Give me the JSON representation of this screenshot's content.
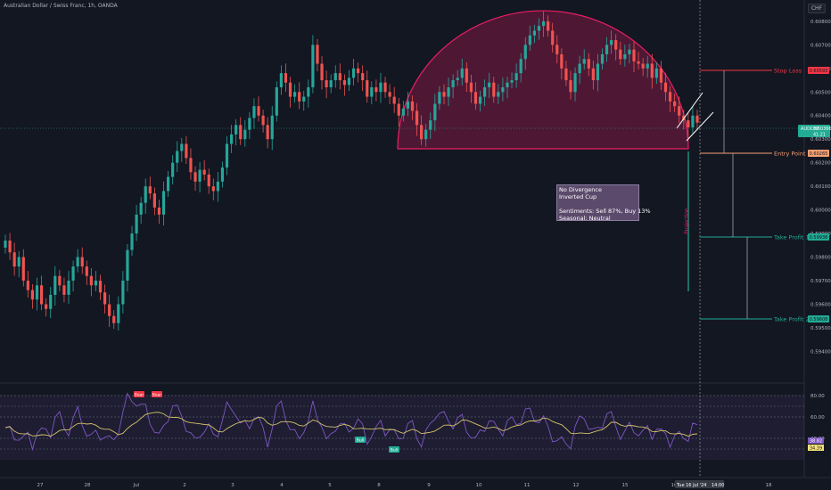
{
  "header": {
    "title": "Australian Dollar / Swiss Franc, 1h, OANDA",
    "currency": "CHF"
  },
  "note": {
    "line1": "No Divergence",
    "line2": "Inverted Cup",
    "line3": "Sentiments: Sell 87%, Buy 13%",
    "line4": "Seasonal: Neutral"
  },
  "chart_data": {
    "type": "candlestick",
    "symbol": "AUDCHF",
    "current_price": "0.60366",
    "countdown": "41:21",
    "price_axis": {
      "ylim": [
        0.5936,
        0.6086
      ],
      "ticks": [
        "0.60800",
        "0.60700",
        "0.60600",
        "0.60500",
        "0.60400",
        "0.60300",
        "0.60200",
        "0.60100",
        "0.60000",
        "0.59900",
        "0.59800",
        "0.59700",
        "0.59600",
        "0.59500",
        "0.59400"
      ]
    },
    "time_axis": {
      "labels": [
        "27",
        "28",
        "Jul",
        "2",
        "3",
        "4",
        "5",
        "8",
        "9",
        "10",
        "11",
        "12",
        "15",
        "16",
        "18"
      ],
      "cursor_label": "Tue 16 Jul '24",
      "cursor_time": "14:00"
    },
    "levels": [
      {
        "label": "Stop Loss",
        "price": "0.60593",
        "color": "#f23645"
      },
      {
        "label": "Entry Point",
        "price": "0.60265",
        "color": "#f7a072"
      },
      {
        "label": "Take Profit 1",
        "price": "0.59938",
        "color": "#22ab94"
      },
      {
        "label": "Take Profit 2",
        "price": "0.59608",
        "color": "#22ab94"
      }
    ],
    "projection_label": "Projection",
    "close_series": [
      0.5987,
      0.5982,
      0.5976,
      0.598,
      0.597,
      0.5966,
      0.5962,
      0.5968,
      0.596,
      0.5958,
      0.5964,
      0.5972,
      0.5968,
      0.5964,
      0.597,
      0.5976,
      0.598,
      0.5976,
      0.5972,
      0.5968,
      0.597,
      0.5965,
      0.596,
      0.5955,
      0.5952,
      0.596,
      0.597,
      0.5983,
      0.599,
      0.5998,
      0.6003,
      0.601,
      0.6007,
      0.6001,
      0.5998,
      0.6008,
      0.6014,
      0.602,
      0.6025,
      0.6028,
      0.6022,
      0.6016,
      0.6012,
      0.6017,
      0.6015,
      0.601,
      0.6008,
      0.6012,
      0.6018,
      0.6028,
      0.6032,
      0.6036,
      0.603,
      0.6034,
      0.6039,
      0.6044,
      0.604,
      0.6036,
      0.603,
      0.604,
      0.6052,
      0.6058,
      0.6054,
      0.6048,
      0.605,
      0.6046,
      0.6048,
      0.6052,
      0.607,
      0.6062,
      0.6055,
      0.6052,
      0.6055,
      0.6058,
      0.6055,
      0.6053,
      0.6056,
      0.606,
      0.6058,
      0.6055,
      0.6048,
      0.6052,
      0.605,
      0.6054,
      0.605,
      0.6048,
      0.6045,
      0.604,
      0.6043,
      0.6046,
      0.6042,
      0.6036,
      0.603,
      0.6034,
      0.6038,
      0.6045,
      0.605,
      0.6048,
      0.6052,
      0.6055,
      0.6056,
      0.606,
      0.6054,
      0.605,
      0.6045,
      0.6048,
      0.6052,
      0.6054,
      0.6048,
      0.605,
      0.6052,
      0.6054,
      0.6055,
      0.6058,
      0.6064,
      0.607,
      0.6074,
      0.6076,
      0.6078,
      0.608,
      0.6076,
      0.607,
      0.6066,
      0.606,
      0.6055,
      0.605,
      0.6058,
      0.6062,
      0.6064,
      0.606,
      0.6055,
      0.6062,
      0.6066,
      0.607,
      0.6072,
      0.6068,
      0.6064,
      0.6066,
      0.6068,
      0.6063,
      0.6062,
      0.606,
      0.6062,
      0.6056,
      0.606,
      0.6054,
      0.605,
      0.6046,
      0.6044,
      0.604,
      0.6038,
      0.6035,
      0.604,
      0.6037
    ],
    "rsi_axis": {
      "ticks": [
        "80.00",
        "60.00",
        "40.00"
      ],
      "values": [
        "38.82",
        "34.39"
      ]
    },
    "rsi_signals": [
      {
        "label": "Bear",
        "color": "#f23645"
      },
      {
        "label": "Bear",
        "color": "#f23645"
      },
      {
        "label": "Bull",
        "color": "#22ab94"
      },
      {
        "label": "Bull",
        "color": "#22ab94"
      }
    ]
  }
}
